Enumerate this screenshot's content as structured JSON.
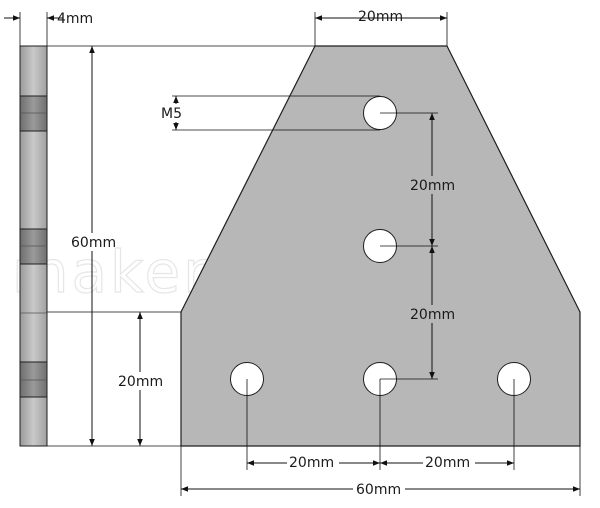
{
  "watermark": "makeralot.com",
  "labels": {
    "thickness": "4mm",
    "top_width": "20mm",
    "hole_size": "M5",
    "left_height": "60mm",
    "left_inner_height": "20mm",
    "vertical_spacing_upper": "20mm",
    "vertical_spacing_lower": "20mm",
    "bottom_spacing_left": "20mm",
    "bottom_spacing_right": "20mm",
    "total_width": "60mm"
  },
  "colors": {
    "plate_fill": "#b7b7b7",
    "plate_stroke": "#1f1f1f",
    "side_fill_light": "#c4c4c4",
    "side_fill_dark": "#8a8a8a",
    "hole_fill": "#ffffff",
    "dimension_line": "#111111",
    "watermark": "#e6e6e6"
  }
}
